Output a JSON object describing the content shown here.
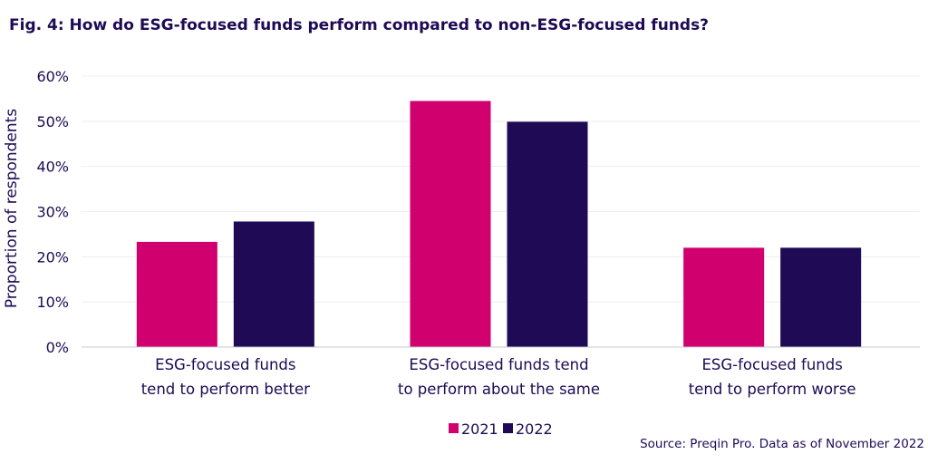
{
  "chart_data": {
    "type": "bar",
    "title": "Fig. 4: How do ESG-focused funds perform compared to non-ESG-focused funds?",
    "xlabel": "",
    "ylabel": "Proportion of respondents",
    "ylim": [
      0,
      60
    ],
    "yticks": [
      "0%",
      "10%",
      "20%",
      "30%",
      "40%",
      "50%",
      "60%"
    ],
    "categories": [
      [
        "ESG-focused funds",
        "tend to perform better"
      ],
      [
        "ESG-focused funds tend",
        "to perform about the same"
      ],
      [
        "ESG-focused funds",
        "tend to perform worse"
      ]
    ],
    "series": [
      {
        "name": "2021",
        "color": "#d1006f",
        "values": [
          23.3,
          54.5,
          22
        ]
      },
      {
        "name": "2022",
        "color": "#1e0a55",
        "values": [
          27.8,
          49.9,
          22
        ]
      }
    ],
    "legend": "bottom-center",
    "source": "Source: Preqin Pro. Data as of November 2022"
  }
}
